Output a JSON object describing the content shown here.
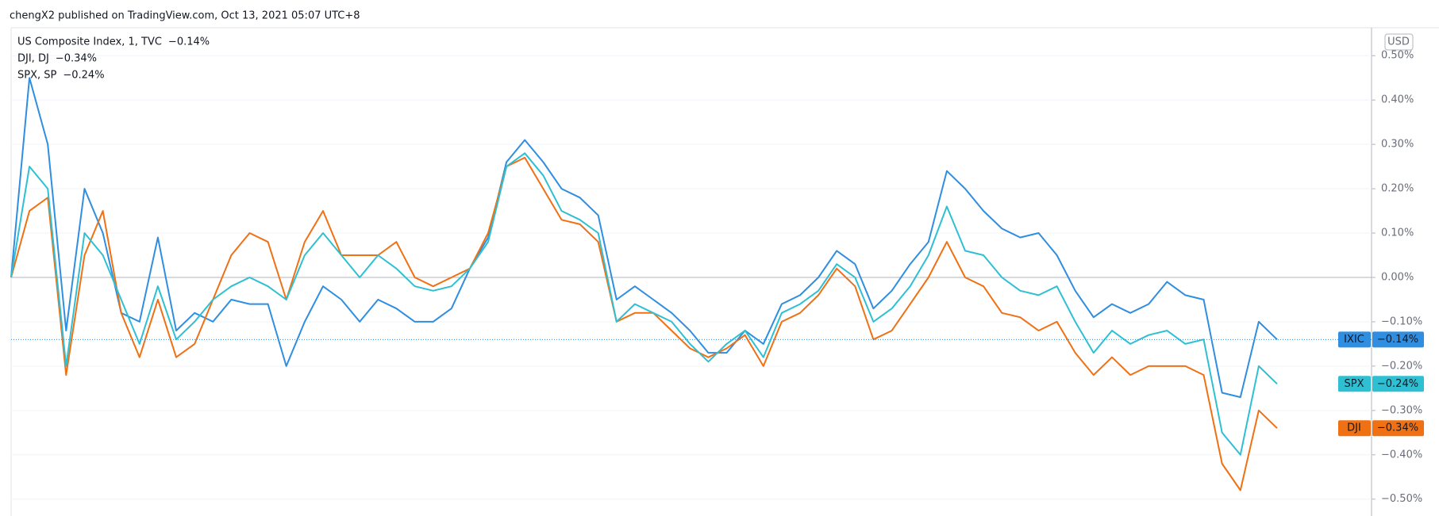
{
  "header": {
    "text": "chengX2 published on TradingView.com, Oct 13, 2021 05:07 UTC+8"
  },
  "chart_data": {
    "type": "line",
    "currency": "USD",
    "ylim": [
      -0.538,
      0.563
    ],
    "yticks": [
      {
        "value": 0.5,
        "label": "0.50%"
      },
      {
        "value": 0.4,
        "label": "0.40%"
      },
      {
        "value": 0.3,
        "label": "0.30%"
      },
      {
        "value": 0.2,
        "label": "0.20%"
      },
      {
        "value": 0.1,
        "label": "0.10%"
      },
      {
        "value": 0,
        "label": "0.00%"
      },
      {
        "value": -0.1,
        "label": "−0.10%"
      },
      {
        "value": -0.2,
        "label": "−0.20%"
      },
      {
        "value": -0.3,
        "label": "−0.30%"
      },
      {
        "value": -0.4,
        "label": "−0.40%"
      },
      {
        "value": -0.5,
        "label": "−0.50%"
      }
    ],
    "grid": true,
    "series": [
      {
        "name": "US Composite Index, 1, TVC",
        "symbol": "IXIC",
        "color": "#2f8ee0",
        "last_value": -0.14,
        "last_label": "−0.14%",
        "values": [
          0.0,
          0.45,
          0.3,
          -0.12,
          0.2,
          0.1,
          -0.08,
          -0.1,
          0.09,
          -0.12,
          -0.08,
          -0.1,
          -0.05,
          -0.06,
          -0.06,
          -0.2,
          -0.1,
          -0.02,
          -0.05,
          -0.1,
          -0.05,
          -0.07,
          -0.1,
          -0.1,
          -0.07,
          0.02,
          0.09,
          0.26,
          0.31,
          0.26,
          0.2,
          0.18,
          0.14,
          -0.05,
          -0.02,
          -0.05,
          -0.08,
          -0.12,
          -0.17,
          -0.17,
          -0.12,
          -0.15,
          -0.06,
          -0.04,
          0.0,
          0.06,
          0.03,
          -0.07,
          -0.03,
          0.03,
          0.08,
          0.24,
          0.2,
          0.15,
          0.11,
          0.09,
          0.1,
          0.05,
          -0.03,
          -0.09,
          -0.06,
          -0.08,
          -0.06,
          -0.01,
          -0.04,
          -0.05,
          -0.26,
          -0.27,
          -0.1,
          -0.14
        ]
      },
      {
        "name": "DJI, DJ",
        "symbol": "DJI",
        "color": "#f07014",
        "last_value": -0.34,
        "last_label": "−0.34%",
        "values": [
          0.0,
          0.15,
          0.18,
          -0.22,
          0.05,
          0.15,
          -0.08,
          -0.18,
          -0.05,
          -0.18,
          -0.15,
          -0.05,
          0.05,
          0.1,
          0.08,
          -0.05,
          0.08,
          0.15,
          0.05,
          0.05,
          0.05,
          0.08,
          0.0,
          -0.02,
          0.0,
          0.02,
          0.1,
          0.25,
          0.27,
          0.2,
          0.13,
          0.12,
          0.08,
          -0.1,
          -0.08,
          -0.08,
          -0.12,
          -0.16,
          -0.18,
          -0.16,
          -0.13,
          -0.2,
          -0.1,
          -0.08,
          -0.04,
          0.02,
          -0.02,
          -0.14,
          -0.12,
          -0.06,
          0.0,
          0.08,
          0.0,
          -0.02,
          -0.08,
          -0.09,
          -0.12,
          -0.1,
          -0.17,
          -0.22,
          -0.18,
          -0.22,
          -0.2,
          -0.2,
          -0.2,
          -0.22,
          -0.42,
          -0.48,
          -0.3,
          -0.34
        ]
      },
      {
        "name": "SPX, SP",
        "symbol": "SPX",
        "color": "#2ec0d2",
        "last_value": -0.24,
        "last_label": "−0.24%",
        "values": [
          0.0,
          0.25,
          0.2,
          -0.2,
          0.1,
          0.05,
          -0.05,
          -0.15,
          -0.02,
          -0.14,
          -0.1,
          -0.05,
          -0.02,
          0.0,
          -0.02,
          -0.05,
          0.05,
          0.1,
          0.05,
          0.0,
          0.05,
          0.02,
          -0.02,
          -0.03,
          -0.02,
          0.02,
          0.08,
          0.25,
          0.28,
          0.23,
          0.15,
          0.13,
          0.1,
          -0.1,
          -0.06,
          -0.08,
          -0.1,
          -0.15,
          -0.19,
          -0.15,
          -0.12,
          -0.18,
          -0.08,
          -0.06,
          -0.03,
          0.03,
          0.0,
          -0.1,
          -0.07,
          -0.02,
          0.05,
          0.16,
          0.06,
          0.05,
          0.0,
          -0.03,
          -0.04,
          -0.02,
          -0.1,
          -0.17,
          -0.12,
          -0.15,
          -0.13,
          -0.12,
          -0.15,
          -0.14,
          -0.35,
          -0.4,
          -0.2,
          -0.24
        ]
      }
    ]
  }
}
